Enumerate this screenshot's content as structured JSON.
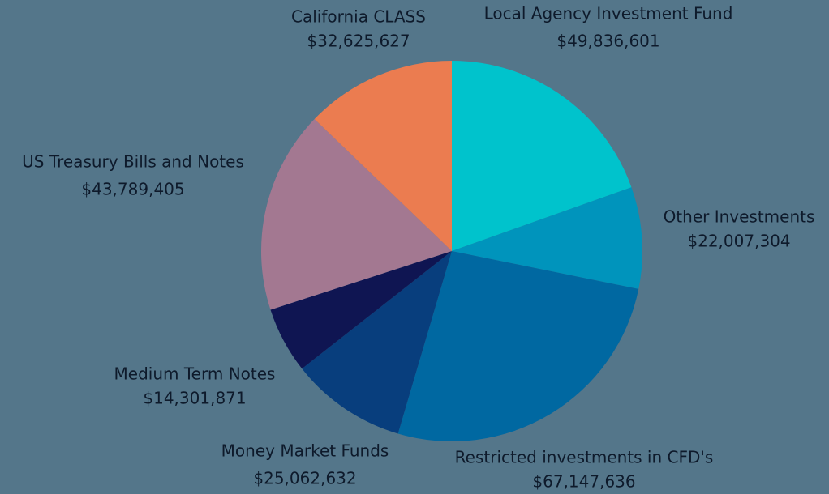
{
  "chart_data": {
    "type": "pie",
    "categories": [
      "Local Agency Investment Fund",
      "Other Investments",
      "Restricted investments in CFD's",
      "Money Market Funds",
      "Medium Term Notes",
      "US Treasury Bills and Notes",
      "California CLASS"
    ],
    "values": [
      49836601,
      22007304,
      67147636,
      25062632,
      14301871,
      43789405,
      32625627
    ],
    "value_labels": [
      "$49,836,601",
      "$22,007,304",
      "$67,147,636",
      "$25,062,632",
      "$14,301,871",
      "$43,789,405",
      "$32,625,627"
    ],
    "colors": [
      "#00c3cc",
      "#0094bc",
      "#0068a1",
      "#083e7d",
      "#0f1552",
      "#a37891",
      "#eb7c50"
    ]
  }
}
